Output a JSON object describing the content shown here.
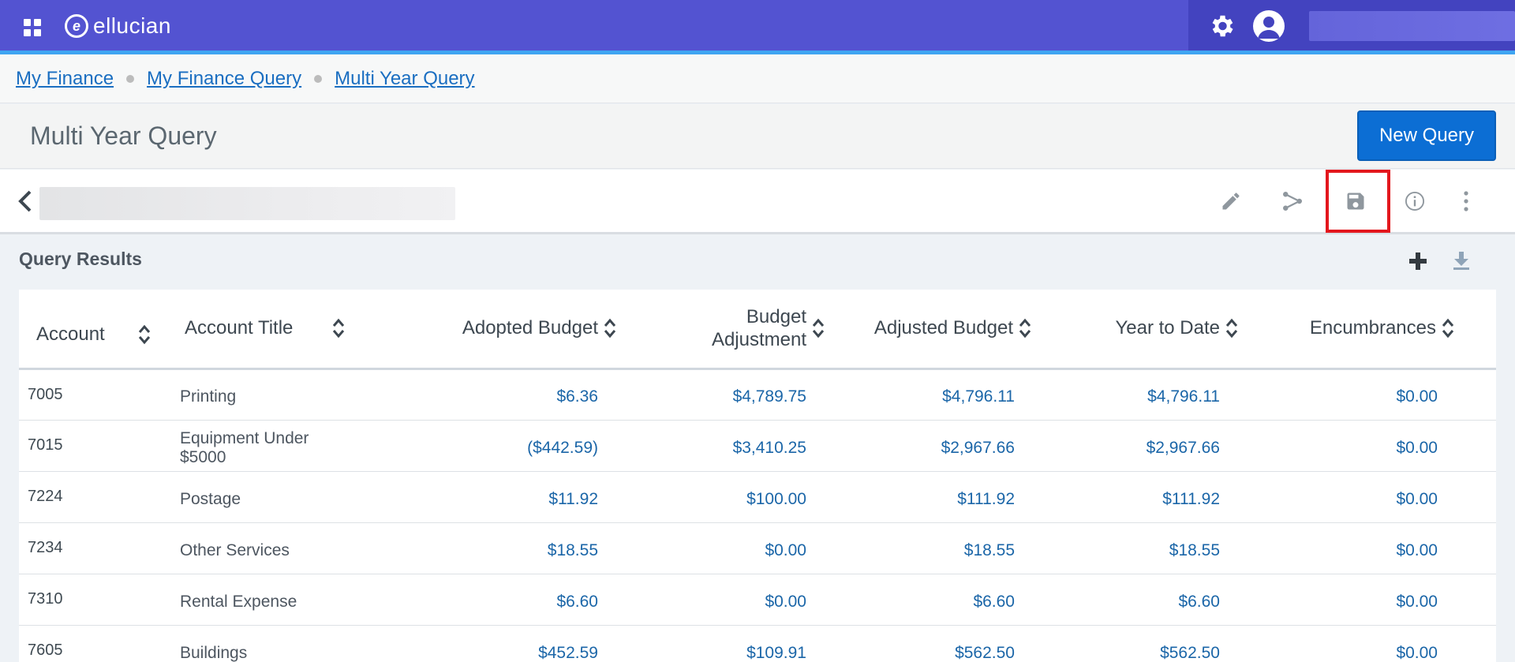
{
  "header": {
    "brand": "ellucian",
    "logo_mark": "e",
    "icons": [
      "apps-grid-icon",
      "settings-gear-icon",
      "user-profile-icon"
    ]
  },
  "breadcrumb": [
    "My Finance",
    "My Finance Query",
    "Multi Year Query"
  ],
  "page": {
    "title": "Multi Year Query",
    "new_query_label": "New Query"
  },
  "toolbar": {
    "icons": [
      "back-chevron-icon",
      "edit-pencil-icon",
      "share-icon",
      "save-icon",
      "info-icon",
      "more-vertical-icon"
    ],
    "highlighted": "save-icon"
  },
  "results": {
    "title": "Query Results",
    "columns": [
      "Account",
      "Account Title",
      "Adopted Budget",
      "Budget Adjustment",
      "Adjusted Budget",
      "Year to Date",
      "Encumbrances"
    ],
    "column_lines": {
      "budget_adjustment": [
        "Budget",
        "Adjustment"
      ]
    },
    "rows": [
      {
        "account": "7005",
        "title": "Printing",
        "adopted": "$6.36",
        "adjustment": "$4,789.75",
        "adjusted": "$4,796.11",
        "ytd": "$4,796.11",
        "encumbrances": "$0.00"
      },
      {
        "account": "7015",
        "title": "Equipment Under $5000",
        "adopted": "($442.59)",
        "adjustment": "$3,410.25",
        "adjusted": "$2,967.66",
        "ytd": "$2,967.66",
        "encumbrances": "$0.00"
      },
      {
        "account": "7224",
        "title": "Postage",
        "adopted": "$11.92",
        "adjustment": "$100.00",
        "adjusted": "$111.92",
        "ytd": "$111.92",
        "encumbrances": "$0.00"
      },
      {
        "account": "7234",
        "title": "Other Services",
        "adopted": "$18.55",
        "adjustment": "$0.00",
        "adjusted": "$18.55",
        "ytd": "$18.55",
        "encumbrances": "$0.00"
      },
      {
        "account": "7310",
        "title": "Rental Expense",
        "adopted": "$6.60",
        "adjustment": "$0.00",
        "adjusted": "$6.60",
        "ytd": "$6.60",
        "encumbrances": "$0.00"
      },
      {
        "account": "7605",
        "title": "Buildings",
        "adopted": "$452.59",
        "adjustment": "$109.91",
        "adjusted": "$562.50",
        "ytd": "$562.50",
        "encumbrances": "$0.00"
      }
    ]
  },
  "colors": {
    "header_bg": "#5353d1",
    "header_accent": "#3fa5f2",
    "link": "#1a6ec1",
    "primary_button": "#0c6ed4",
    "highlight_box": "#e3171d",
    "amount_text": "#1b66a8"
  }
}
